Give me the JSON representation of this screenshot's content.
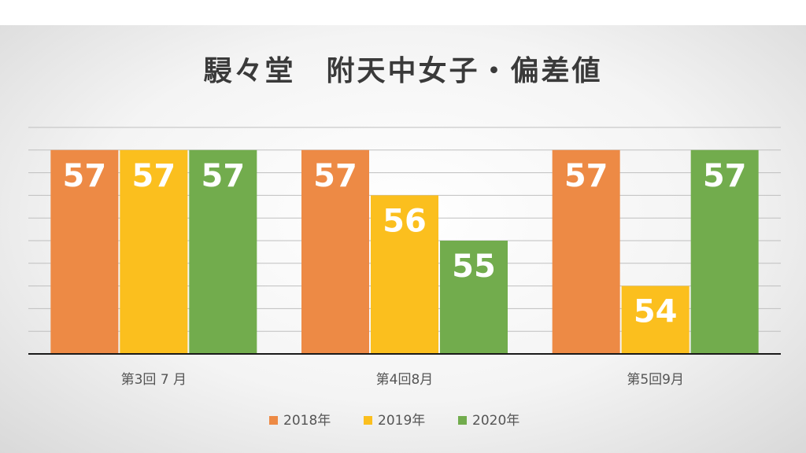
{
  "chart_data": {
    "type": "bar",
    "title": "駸々堂　附天中女子・偏差値",
    "categories": [
      "第3回 7 月",
      "第4回8月",
      "第5回9月"
    ],
    "series": [
      {
        "name": "2018年",
        "values": [
          57,
          57,
          57
        ],
        "color": "#ed8a45"
      },
      {
        "name": "2019年",
        "values": [
          57,
          56,
          54
        ],
        "color": "#fbbf1e"
      },
      {
        "name": "2020年",
        "values": [
          57,
          55,
          57
        ],
        "color": "#72ac4d"
      }
    ],
    "ylim": [
      52.5,
      57.5
    ],
    "y_gridline_step": 0.5,
    "grid": true,
    "data_labels": true,
    "legend_position": "bottom",
    "axis_color": "#1a1a1a",
    "grid_color": "#bfbfbf"
  }
}
